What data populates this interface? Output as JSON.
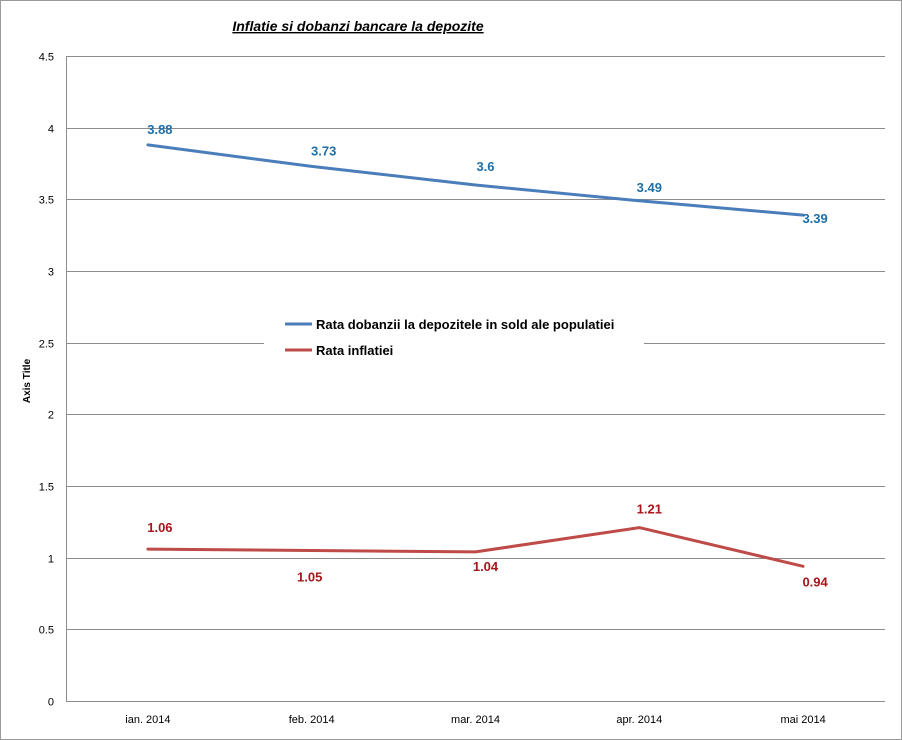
{
  "chart_data": {
    "type": "line",
    "title": "Inflatie si dobanzi bancare la depozite",
    "xlabel": "",
    "ylabel": "Axis Title",
    "ylim": [
      0,
      4.5
    ],
    "yticks": [
      0,
      0.5,
      1,
      1.5,
      2,
      2.5,
      3,
      3.5,
      4,
      4.5
    ],
    "ytick_labels": [
      "0",
      "0.5",
      "1",
      "1.5",
      "2",
      "2.5",
      "3",
      "3.5",
      "4",
      "4.5"
    ],
    "categories": [
      "ian. 2014",
      "feb. 2014",
      "mar. 2014",
      "apr. 2014",
      "mai 2014"
    ],
    "grid": true,
    "legend_position": "center",
    "series": [
      {
        "name": "Rata dobanzii la depozitele in sold ale populatiei",
        "color": "#4a7ebb",
        "label_color": "#1f6fa8",
        "values": [
          3.88,
          3.73,
          3.6,
          3.49,
          3.39
        ],
        "labels": [
          "3.88",
          "3.73",
          "3.6",
          "3.49",
          "3.39"
        ]
      },
      {
        "name": "Rata inflatiei",
        "color": "#be4b48",
        "label_color": "#a8151a",
        "values": [
          1.06,
          1.05,
          1.04,
          1.21,
          0.94
        ],
        "labels": [
          "1.06",
          "1.05",
          "1.04",
          "1.21",
          "0.94"
        ]
      }
    ]
  }
}
